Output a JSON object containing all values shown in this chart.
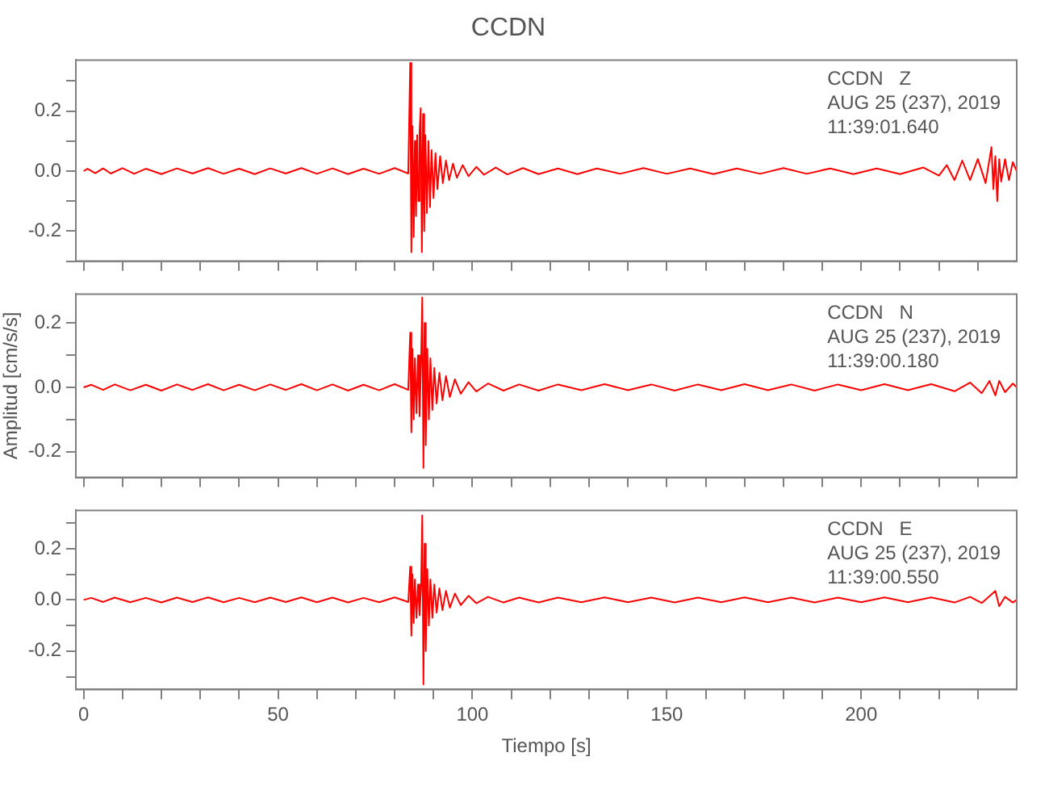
{
  "chart_data": [
    {
      "type": "line",
      "title": "CCDN",
      "annotations": [
        "CCDN   Z",
        "AUG 25 (237), 2019",
        "11:39:01.640"
      ],
      "xlim": [
        -2,
        240
      ],
      "xticks": [
        0,
        {
          "value": 10,
          "label": null
        },
        {
          "value": 20,
          "label": null
        },
        {
          "value": 30,
          "label": null
        },
        {
          "value": 40,
          "label": null
        },
        50,
        {
          "value": 60,
          "label": null
        },
        {
          "value": 70,
          "label": null
        },
        {
          "value": 80,
          "label": null
        },
        {
          "value": 90,
          "label": null
        },
        100,
        {
          "value": 110,
          "label": null
        },
        {
          "value": 120,
          "label": null
        },
        {
          "value": 130,
          "label": null
        },
        {
          "value": 140,
          "label": null
        },
        150,
        {
          "value": 160,
          "label": null
        },
        {
          "value": 170,
          "label": null
        },
        {
          "value": 180,
          "label": null
        },
        {
          "value": 190,
          "label": null
        },
        200,
        {
          "value": 210,
          "label": null
        },
        {
          "value": 220,
          "label": null
        },
        {
          "value": 230,
          "label": null
        }
      ],
      "ylim": [
        -0.3,
        0.37
      ],
      "yticks": [
        {
          "value": -0.3,
          "label": null
        },
        {
          "value": -0.2,
          "label": "-0.2"
        },
        {
          "value": -0.1,
          "label": null
        },
        {
          "value": 0,
          "label": "0.0"
        },
        {
          "value": 0.1,
          "label": null
        },
        {
          "value": 0.2,
          "label": "0.2"
        },
        {
          "value": 0.3,
          "label": null
        }
      ],
      "tick_labels": "y",
      "legend": false,
      "grid": false,
      "series": [
        {
          "color": "#ff0000",
          "x": [
            0,
            1,
            3,
            5,
            7,
            10,
            13,
            16,
            20,
            24,
            28,
            32,
            36,
            40,
            44,
            48,
            52,
            56,
            60,
            64,
            68,
            72,
            76,
            80,
            83.5,
            84,
            84.3,
            84.6,
            84.9,
            85.2,
            85.5,
            85.8,
            86.1,
            86.4,
            86.7,
            87,
            87.3,
            87.6,
            87.9,
            88.3,
            88.7,
            89.1,
            89.5,
            90,
            90.5,
            91,
            91.7,
            92.4,
            93.2,
            94,
            95,
            96,
            97.5,
            99,
            101,
            103,
            106,
            109,
            113,
            117,
            122,
            127,
            132,
            138,
            144,
            150,
            156,
            162,
            168,
            174,
            180,
            186,
            192,
            198,
            204,
            210,
            216,
            220,
            222,
            224,
            226,
            228,
            230,
            232,
            233.5,
            234,
            234.5,
            235,
            235.5,
            236,
            237,
            238,
            239,
            240
          ],
          "values": [
            0,
            0.008,
            -0.007,
            0.009,
            -0.008,
            0.01,
            -0.009,
            0.008,
            -0.01,
            0.009,
            -0.008,
            0.01,
            -0.009,
            0.008,
            -0.01,
            0.009,
            -0.008,
            0.01,
            -0.009,
            0.009,
            -0.01,
            0.008,
            -0.009,
            0.01,
            -0.008,
            0.36,
            -0.27,
            0.15,
            -0.22,
            0.1,
            -0.15,
            0.12,
            -0.1,
            0.13,
            0.21,
            -0.27,
            0.19,
            -0.2,
            0.12,
            -0.14,
            0.1,
            -0.12,
            0.07,
            -0.09,
            0.06,
            -0.06,
            0.05,
            -0.04,
            0.035,
            -0.03,
            0.025,
            -0.022,
            0.02,
            -0.017,
            0.014,
            -0.012,
            0.012,
            -0.011,
            0.01,
            -0.01,
            0.009,
            -0.01,
            0.009,
            -0.009,
            0.01,
            -0.009,
            0.009,
            -0.01,
            0.009,
            -0.009,
            0.01,
            -0.009,
            0.009,
            -0.01,
            0.009,
            -0.01,
            0.012,
            -0.015,
            0.02,
            -0.03,
            0.035,
            -0.03,
            0.04,
            -0.04,
            0.08,
            -0.06,
            0.05,
            -0.1,
            0.04,
            -0.035,
            0.04,
            -0.03,
            0.03,
            0
          ]
        }
      ]
    },
    {
      "type": "line",
      "ylabel": "Amplitud [cm/s/s]",
      "annotations": [
        "CCDN   N",
        "AUG 25 (237), 2019",
        "11:39:00.180"
      ],
      "xlim": [
        -2,
        240
      ],
      "xticks": [
        0,
        {
          "value": 10,
          "label": null
        },
        {
          "value": 20,
          "label": null
        },
        {
          "value": 30,
          "label": null
        },
        {
          "value": 40,
          "label": null
        },
        50,
        {
          "value": 60,
          "label": null
        },
        {
          "value": 70,
          "label": null
        },
        {
          "value": 80,
          "label": null
        },
        {
          "value": 90,
          "label": null
        },
        100,
        {
          "value": 110,
          "label": null
        },
        {
          "value": 120,
          "label": null
        },
        {
          "value": 130,
          "label": null
        },
        {
          "value": 140,
          "label": null
        },
        150,
        {
          "value": 160,
          "label": null
        },
        {
          "value": 170,
          "label": null
        },
        {
          "value": 180,
          "label": null
        },
        {
          "value": 190,
          "label": null
        },
        200,
        {
          "value": 210,
          "label": null
        },
        {
          "value": 220,
          "label": null
        },
        {
          "value": 230,
          "label": null
        }
      ],
      "ylim": [
        -0.28,
        0.29
      ],
      "yticks": [
        {
          "value": -0.2,
          "label": "-0.2"
        },
        {
          "value": -0.1,
          "label": null
        },
        {
          "value": 0,
          "label": "0.0"
        },
        {
          "value": 0.1,
          "label": null
        },
        {
          "value": 0.2,
          "label": "0.2"
        }
      ],
      "tick_labels": "y",
      "legend": false,
      "grid": false,
      "series": [
        {
          "color": "#ff0000",
          "x": [
            0,
            2,
            5,
            8,
            12,
            16,
            20,
            24,
            28,
            32,
            36,
            40,
            44,
            48,
            52,
            56,
            60,
            64,
            68,
            72,
            76,
            80,
            83.5,
            84,
            84.3,
            84.6,
            84.9,
            85.2,
            85.6,
            86,
            86.4,
            86.8,
            87.1,
            87.4,
            87.7,
            88,
            88.4,
            88.8,
            89.2,
            89.7,
            90.2,
            90.8,
            91.5,
            92.3,
            93.2,
            94.2,
            95.5,
            97,
            99,
            101,
            104,
            108,
            112,
            117,
            122,
            128,
            134,
            140,
            146,
            152,
            158,
            164,
            170,
            176,
            182,
            188,
            194,
            200,
            206,
            212,
            218,
            224,
            228,
            231,
            233,
            234.5,
            235.5,
            237,
            239,
            240
          ],
          "values": [
            0,
            0.008,
            -0.008,
            0.009,
            -0.009,
            0.008,
            -0.01,
            0.009,
            -0.008,
            0.01,
            -0.009,
            0.008,
            -0.009,
            0.009,
            -0.008,
            0.01,
            -0.009,
            0.009,
            -0.01,
            0.008,
            -0.009,
            0.01,
            -0.008,
            0.17,
            -0.14,
            0.12,
            -0.1,
            0.09,
            -0.08,
            0.1,
            -0.09,
            0.08,
            0.28,
            -0.25,
            0.2,
            -0.18,
            0.12,
            -0.1,
            0.09,
            -0.07,
            0.06,
            -0.05,
            0.045,
            -0.04,
            0.035,
            -0.03,
            0.025,
            -0.02,
            0.016,
            -0.013,
            0.012,
            -0.01,
            0.009,
            -0.01,
            0.009,
            -0.009,
            0.01,
            -0.009,
            0.009,
            -0.01,
            0.009,
            -0.009,
            0.01,
            -0.009,
            0.009,
            -0.01,
            0.009,
            -0.009,
            0.01,
            -0.009,
            0.01,
            -0.012,
            0.015,
            -0.018,
            0.02,
            -0.025,
            0.02,
            -0.015,
            0.012,
            0
          ]
        }
      ]
    },
    {
      "type": "line",
      "xlabel": "Tiempo [s]",
      "annotations": [
        "CCDN   E",
        "AUG 25 (237), 2019",
        "11:39:00.550"
      ],
      "xlim": [
        -2,
        240
      ],
      "xticks": [
        0,
        {
          "value": 10,
          "label": null
        },
        {
          "value": 20,
          "label": null
        },
        {
          "value": 30,
          "label": null
        },
        {
          "value": 40,
          "label": null
        },
        50,
        {
          "value": 60,
          "label": null
        },
        {
          "value": 70,
          "label": null
        },
        {
          "value": 80,
          "label": null
        },
        {
          "value": 90,
          "label": null
        },
        100,
        {
          "value": 110,
          "label": null
        },
        {
          "value": 120,
          "label": null
        },
        {
          "value": 130,
          "label": null
        },
        {
          "value": 140,
          "label": null
        },
        150,
        {
          "value": 160,
          "label": null
        },
        {
          "value": 170,
          "label": null
        },
        {
          "value": 180,
          "label": null
        },
        {
          "value": 190,
          "label": null
        },
        200,
        {
          "value": 210,
          "label": null
        },
        {
          "value": 220,
          "label": null
        },
        {
          "value": 230,
          "label": null
        }
      ],
      "ylim": [
        -0.35,
        0.35
      ],
      "yticks": [
        {
          "value": -0.3,
          "label": null
        },
        {
          "value": -0.2,
          "label": "-0.2"
        },
        {
          "value": -0.1,
          "label": null
        },
        {
          "value": 0,
          "label": "0.0"
        },
        {
          "value": 0.1,
          "label": null
        },
        {
          "value": 0.2,
          "label": "0.2"
        },
        {
          "value": 0.3,
          "label": null
        }
      ],
      "legend": false,
      "grid": false,
      "series": [
        {
          "color": "#ff0000",
          "x": [
            0,
            2,
            5,
            8,
            12,
            16,
            20,
            24,
            28,
            32,
            36,
            40,
            44,
            48,
            52,
            56,
            60,
            64,
            68,
            72,
            76,
            80,
            83.5,
            84,
            84.3,
            84.6,
            84.9,
            85.2,
            85.6,
            86,
            86.4,
            86.8,
            87.1,
            87.4,
            87.7,
            88,
            88.4,
            88.8,
            89.2,
            89.7,
            90.2,
            90.8,
            91.5,
            92.3,
            93.2,
            94.2,
            95.5,
            97,
            99,
            101,
            104,
            108,
            112,
            117,
            122,
            128,
            134,
            140,
            146,
            152,
            158,
            164,
            170,
            176,
            182,
            188,
            194,
            200,
            206,
            212,
            218,
            224,
            228,
            231,
            233,
            234.5,
            235.5,
            237,
            239,
            240
          ],
          "values": [
            0,
            0.008,
            -0.008,
            0.009,
            -0.009,
            0.008,
            -0.01,
            0.009,
            -0.008,
            0.01,
            -0.009,
            0.008,
            -0.009,
            0.009,
            -0.008,
            0.01,
            -0.009,
            0.009,
            -0.01,
            0.008,
            -0.009,
            0.01,
            -0.008,
            0.13,
            -0.14,
            0.1,
            -0.09,
            0.08,
            -0.07,
            0.06,
            -0.06,
            0.05,
            0.33,
            -0.33,
            0.22,
            -0.2,
            0.12,
            -0.1,
            0.08,
            -0.07,
            0.06,
            -0.05,
            0.045,
            -0.04,
            0.035,
            -0.03,
            0.025,
            -0.02,
            0.016,
            -0.013,
            0.012,
            -0.01,
            0.009,
            -0.01,
            0.009,
            -0.009,
            0.01,
            -0.009,
            0.009,
            -0.01,
            0.009,
            -0.009,
            0.01,
            -0.009,
            0.009,
            -0.01,
            0.009,
            -0.009,
            0.01,
            -0.009,
            0.01,
            -0.01,
            0.012,
            -0.012,
            0.015,
            0.035,
            -0.025,
            0.012,
            -0.01,
            0
          ]
        }
      ]
    }
  ]
}
